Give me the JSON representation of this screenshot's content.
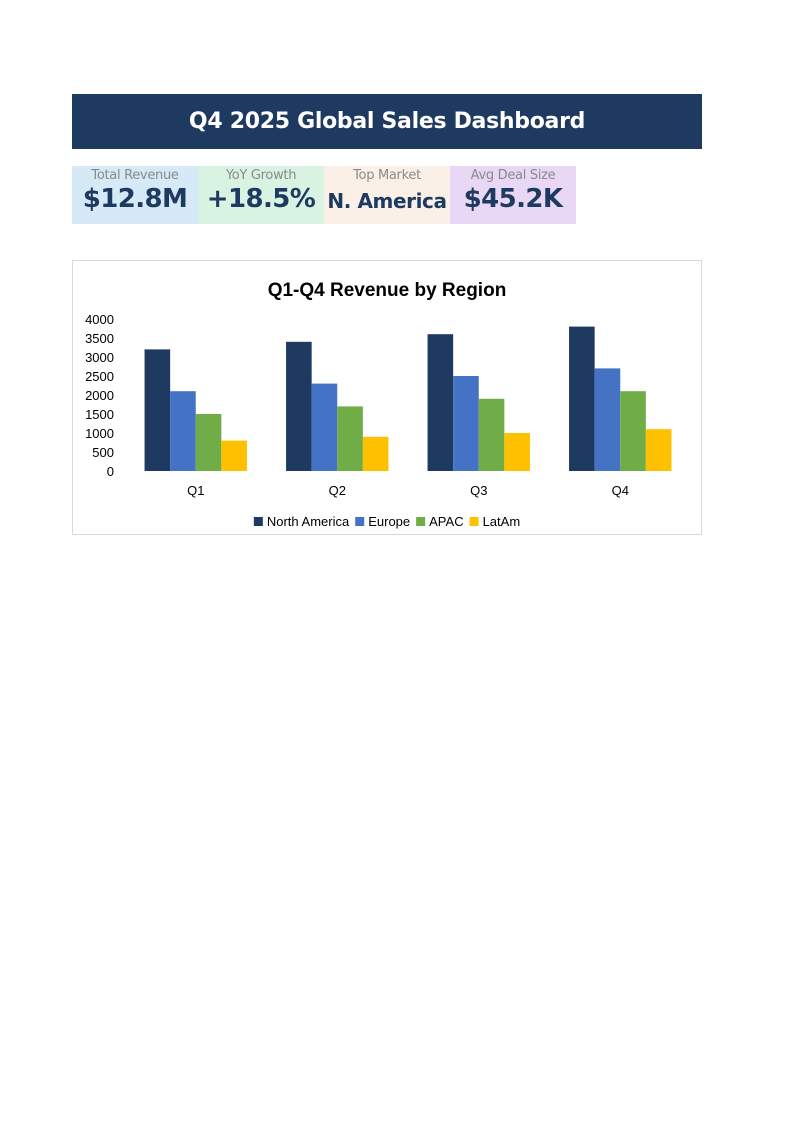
{
  "header": {
    "title": "Q4 2025 Global Sales Dashboard"
  },
  "kpis": [
    {
      "label": "Total Revenue",
      "value": "$12.8M",
      "bg": "#d6e9f7"
    },
    {
      "label": "YoY Growth",
      "value": "+18.5%",
      "bg": "#d8f3e2"
    },
    {
      "label": "Top Market",
      "value": "N. America",
      "bg": "#fbf0e8"
    },
    {
      "label": "Avg Deal Size",
      "value": "$45.2K",
      "bg": "#e8d7f5"
    }
  ],
  "chart_data": {
    "type": "bar",
    "title": "Q1-Q4 Revenue by Region",
    "xlabel": "",
    "ylabel": "",
    "categories": [
      "Q1",
      "Q2",
      "Q3",
      "Q4"
    ],
    "ylim": [
      0,
      4000
    ],
    "yticks": [
      "4000",
      "3500",
      "3000",
      "2500",
      "2000",
      "1500",
      "1000",
      "500",
      "0"
    ],
    "grid": false,
    "legend_position": "bottom",
    "series": [
      {
        "name": "North America",
        "color": "#1f3a60",
        "values": [
          3200,
          3400,
          3600,
          3800
        ]
      },
      {
        "name": "Europe",
        "color": "#4472c4",
        "values": [
          2100,
          2300,
          2500,
          2700
        ]
      },
      {
        "name": "APAC",
        "color": "#70ad47",
        "values": [
          1500,
          1700,
          1900,
          2100
        ]
      },
      {
        "name": "LatAm",
        "color": "#ffc000",
        "values": [
          800,
          900,
          1000,
          1100
        ]
      }
    ]
  }
}
